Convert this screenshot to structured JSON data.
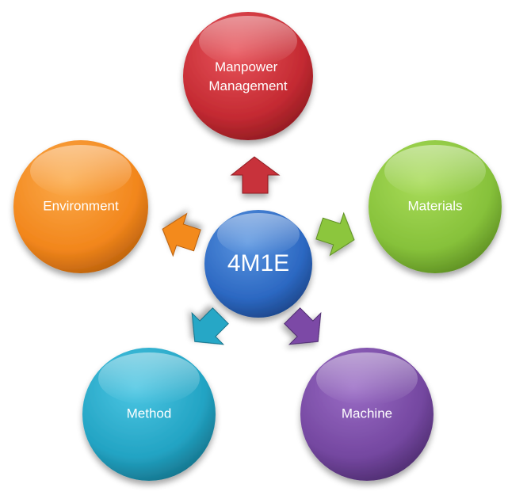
{
  "diagram": {
    "center": {
      "label": "4M1E",
      "color": "#2e6fc9"
    },
    "nodes": [
      {
        "id": "manpower",
        "lines": [
          "Manpower",
          "Management"
        ],
        "color": "#c8323a"
      },
      {
        "id": "materials",
        "lines": [
          "Materials"
        ],
        "color": "#8cc63e"
      },
      {
        "id": "machine",
        "lines": [
          "Machine"
        ],
        "color": "#7b4aa6"
      },
      {
        "id": "method",
        "lines": [
          "Method"
        ],
        "color": "#26a7c6"
      },
      {
        "id": "environment",
        "lines": [
          "Environment"
        ],
        "color": "#f38a1f"
      }
    ]
  }
}
